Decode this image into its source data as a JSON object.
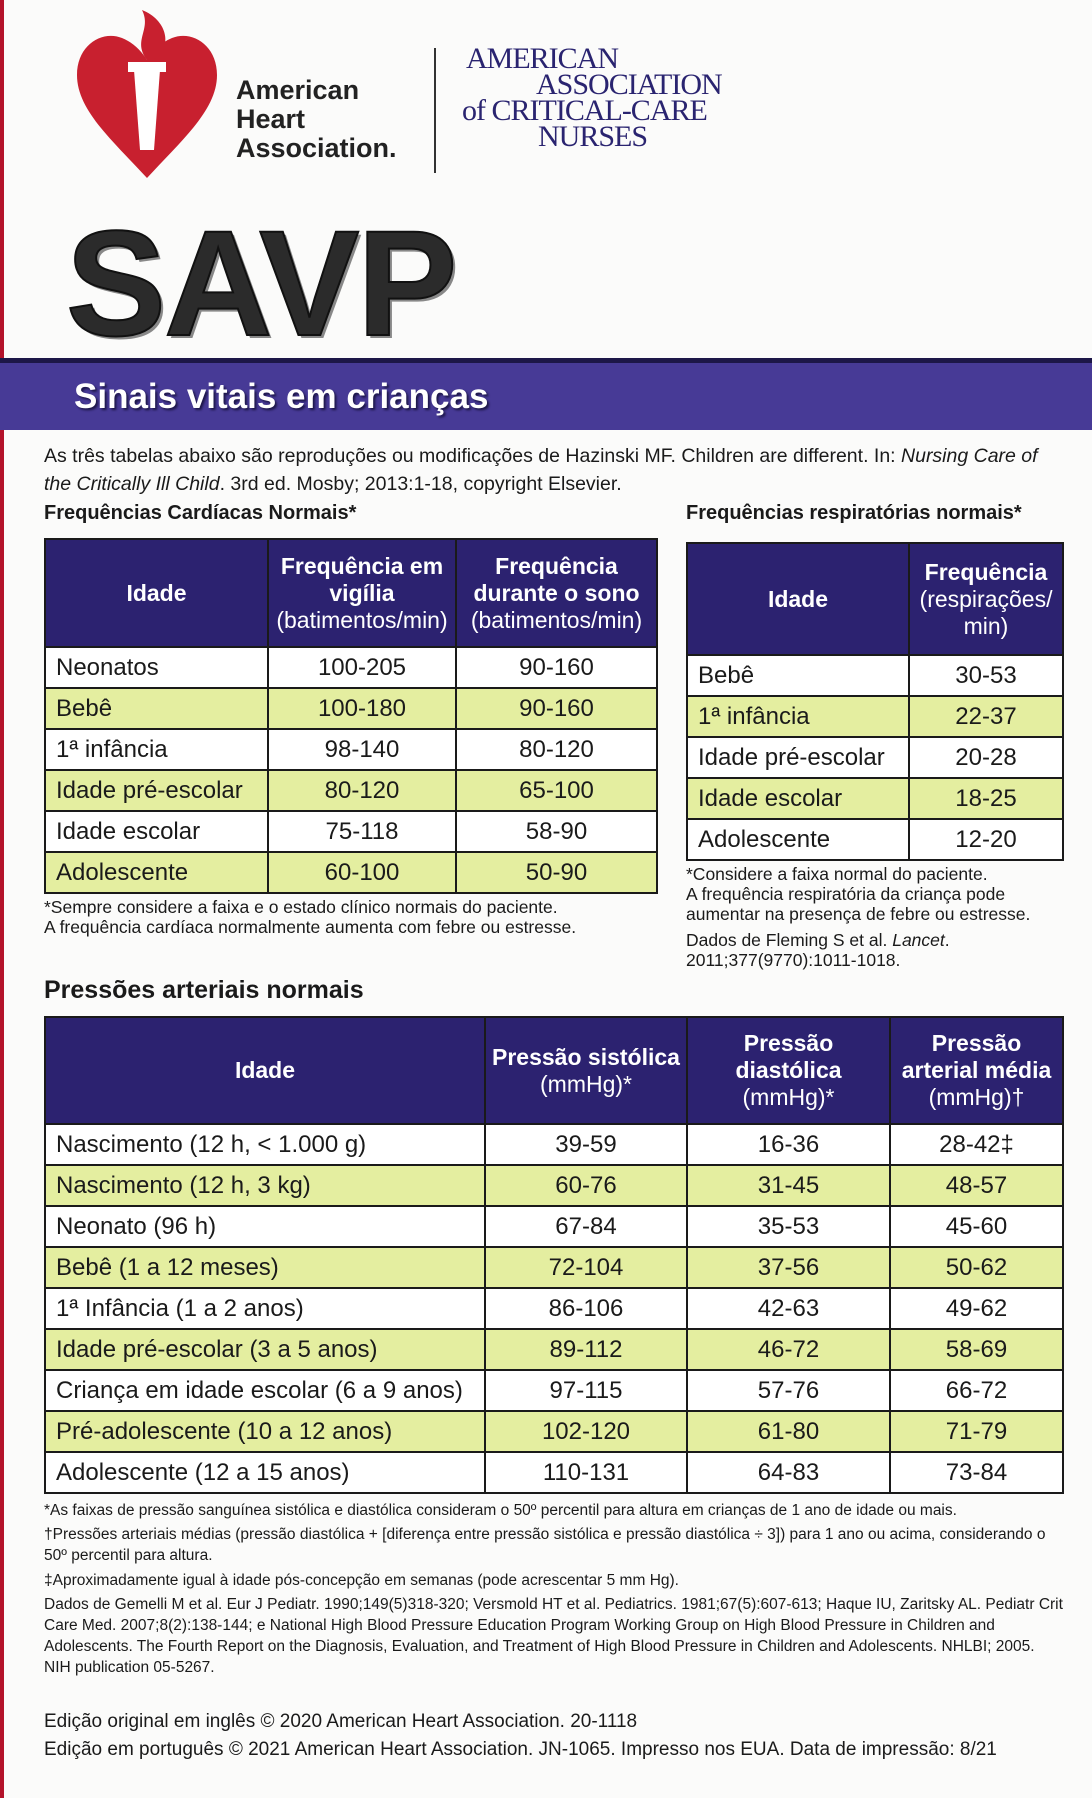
{
  "header": {
    "aha_logo_text": [
      "American",
      "Heart",
      "Association."
    ],
    "aacn_logo_text": [
      "AMERICAN",
      "ASSOCIATION",
      "of CRITICAL-CARE",
      "NURSES"
    ],
    "title": "SAVP",
    "subtitle": "Sinais vitais em crianças"
  },
  "intro": {
    "text": "As três tabelas abaixo são reproduções ou modificações de Hazinski MF. Children are different. In: ",
    "italic": "Nursing Care of the Critically Ill Child",
    "rest": ". 3rd ed. Mosby; 2013:1-18, copyright Elsevier."
  },
  "cardiac": {
    "title": "Frequências Cardíacas Normais*",
    "headers": [
      {
        "main": "Idade",
        "sub": ""
      },
      {
        "main": "Frequência em vigília",
        "sub": "(batimentos/min)"
      },
      {
        "main": "Frequência durante o sono",
        "sub": "(batimentos/min)"
      }
    ],
    "rows": [
      [
        "Neonatos",
        "100-205",
        "90-160"
      ],
      [
        "Bebê",
        "100-180",
        "90-160"
      ],
      [
        "1ª infância",
        "98-140",
        "80-120"
      ],
      [
        "Idade pré-escolar",
        "80-120",
        "65-100"
      ],
      [
        "Idade escolar",
        "75-118",
        "58-90"
      ],
      [
        "Adolescente",
        "60-100",
        "50-90"
      ]
    ],
    "note": [
      "*Sempre considere a faixa e o estado clínico normais do paciente.",
      "A frequência cardíaca normalmente aumenta com febre ou estresse."
    ]
  },
  "resp": {
    "title": "Frequências respiratórias normais*",
    "headers": [
      {
        "main": "Idade",
        "sub": ""
      },
      {
        "main": "Frequência",
        "sub": "(respirações/ min)"
      }
    ],
    "rows": [
      [
        "Bebê",
        "30-53"
      ],
      [
        "1ª infância",
        "22-37"
      ],
      [
        "Idade pré-escolar",
        "20-28"
      ],
      [
        "Idade escolar",
        "18-25"
      ],
      [
        "Adolescente",
        "12-20"
      ]
    ],
    "note": [
      "*Considere a faixa normal do paciente.",
      "A frequência respiratória da criança pode",
      "aumentar na presença de febre ou estresse."
    ],
    "source": "Dados de Fleming S et al. ",
    "source_italic": "Lancet",
    "source_rest": ". 2011;377(9770):1011-1018."
  },
  "pressure": {
    "title": "Pressões arteriais normais",
    "headers": [
      {
        "main": "Idade",
        "sub": ""
      },
      {
        "main": "Pressão sistólica",
        "sub": "(mmHg)*"
      },
      {
        "main": "Pressão diastólica",
        "sub": "(mmHg)*"
      },
      {
        "main": "Pressão arterial média",
        "sub": "(mmHg)†"
      }
    ],
    "rows": [
      [
        "Nascimento (12 h, < 1.000 g)",
        "39-59",
        "16-36",
        "28-42‡"
      ],
      [
        "Nascimento (12 h, 3 kg)",
        "60-76",
        "31-45",
        "48-57"
      ],
      [
        "Neonato (96 h)",
        "67-84",
        "35-53",
        "45-60"
      ],
      [
        "Bebê (1 a 12 meses)",
        "72-104",
        "37-56",
        "50-62"
      ],
      [
        "1ª Infância (1 a 2 anos)",
        "86-106",
        "42-63",
        "49-62"
      ],
      [
        "Idade pré-escolar (3 a 5 anos)",
        "89-112",
        "46-72",
        "58-69"
      ],
      [
        "Criança em idade escolar (6 a 9 anos)",
        "97-115",
        "57-76",
        "66-72"
      ],
      [
        "Pré-adolescente (10 a 12 anos)",
        "102-120",
        "61-80",
        "71-79"
      ],
      [
        "Adolescente (12 a 15 anos)",
        "110-131",
        "64-83",
        "73-84"
      ]
    ]
  },
  "footnotes": [
    "*As faixas de pressão sanguínea sistólica e diastólica consideram o 50º percentil para altura em crianças de 1 ano de idade ou mais.",
    "†Pressões arteriais médias (pressão diastólica + [diferença entre pressão sistólica e pressão diastólica ÷ 3]) para 1 ano ou acima, considerando o 50º percentil para altura.",
    "‡Aproximadamente igual à idade pós-concepção em semanas (pode acrescentar 5 mm Hg).",
    "Dados de Gemelli M et al. Eur J Pediatr. 1990;149(5)318-320; Versmold HT et al. Pediatrics. 1981;67(5):607-613; Haque IU, Zaritsky AL. Pediatr Crit Care Med. 2007;8(2):138-144; e National High Blood Pressure Education Program Working Group on High Blood Pressure in Children and Adolescents. The Fourth Report on the Diagnosis, Evaluation, and Treatment of High Blood Pressure in Children and Adolescents. NHLBI; 2005. NIH publication 05-5267."
  ],
  "edition": [
    "Edição original em inglês © 2020 American Heart Association. 20-1118",
    "Edição em português © 2021 American Heart Association. JN-1065. Impresso nos EUA. Data de impressão: 8/21"
  ]
}
